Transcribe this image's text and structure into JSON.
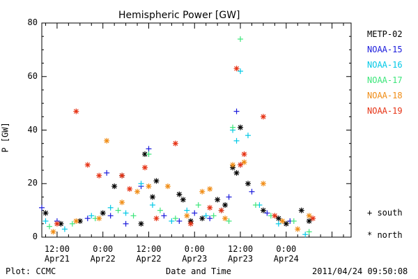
{
  "chart_data": {
    "type": "scatter",
    "title": "Hemispheric Power [GW]",
    "ylabel": "P [GW]",
    "xlabel": "Date and Time",
    "ylim": [
      0,
      80
    ],
    "xlim": [
      "2011-04-21T08:00",
      "2011-04-24T17:00"
    ],
    "y_ticks": [
      0,
      20,
      40,
      60,
      80
    ],
    "x_ticks": [
      {
        "time": "2011-04-21T12:00",
        "label": [
          "12:00",
          "Apr21"
        ]
      },
      {
        "time": "2011-04-22T00:00",
        "label": [
          "0:00",
          "Apr22"
        ]
      },
      {
        "time": "2011-04-22T12:00",
        "label": [
          "12:00",
          "Apr22"
        ]
      },
      {
        "time": "2011-04-23T00:00",
        "label": [
          "0:00",
          "Apr23"
        ]
      },
      {
        "time": "2011-04-23T12:00",
        "label": [
          "12:00",
          "Apr23"
        ]
      },
      {
        "time": "2011-04-24T00:00",
        "label": [
          "0:00",
          "Apr24"
        ]
      }
    ],
    "legend_position": "right",
    "series": [
      {
        "name": "METP-02",
        "color": "#000000",
        "marker": "*",
        "points": [
          [
            "2011-04-21T09:00",
            9
          ],
          [
            "2011-04-21T13:00",
            5
          ],
          [
            "2011-04-21T18:00",
            6
          ],
          [
            "2011-04-22T00:00",
            9
          ],
          [
            "2011-04-22T03:00",
            19
          ],
          [
            "2011-04-22T05:00",
            23
          ],
          [
            "2011-04-22T10:00",
            5
          ],
          [
            "2011-04-22T11:00",
            31
          ],
          [
            "2011-04-22T13:00",
            15
          ],
          [
            "2011-04-22T14:00",
            21
          ],
          [
            "2011-04-22T20:00",
            16
          ],
          [
            "2011-04-22T21:00",
            14
          ],
          [
            "2011-04-22T23:00",
            6
          ],
          [
            "2011-04-23T02:00",
            7
          ],
          [
            "2011-04-23T06:00",
            14
          ],
          [
            "2011-04-23T08:00",
            12
          ],
          [
            "2011-04-23T10:00",
            26
          ],
          [
            "2011-04-23T11:00",
            24
          ],
          [
            "2011-04-23T12:00",
            41
          ],
          [
            "2011-04-23T14:00",
            20
          ],
          [
            "2011-04-23T18:00",
            10
          ],
          [
            "2011-04-23T22:00",
            7
          ],
          [
            "2011-04-24T00:00",
            5
          ],
          [
            "2011-04-24T04:00",
            10
          ],
          [
            "2011-04-24T06:00",
            6
          ]
        ]
      },
      {
        "name": "NOAA-15",
        "color": "#1a1adc",
        "marker": "+",
        "points": [
          [
            "2011-04-21T08:00",
            11
          ],
          [
            "2011-04-21T12:00",
            6
          ],
          [
            "2011-04-21T20:00",
            7
          ],
          [
            "2011-04-22T01:00",
            24
          ],
          [
            "2011-04-22T02:00",
            8
          ],
          [
            "2011-04-22T06:00",
            5
          ],
          [
            "2011-04-22T10:00",
            19
          ],
          [
            "2011-04-22T12:00",
            33
          ],
          [
            "2011-04-22T16:00",
            8
          ],
          [
            "2011-04-22T20:00",
            6
          ],
          [
            "2011-04-23T00:00",
            9
          ],
          [
            "2011-04-23T04:00",
            7
          ],
          [
            "2011-04-23T09:00",
            15
          ],
          [
            "2011-04-23T11:00",
            47
          ],
          [
            "2011-04-23T12:00",
            27
          ],
          [
            "2011-04-23T15:00",
            17
          ],
          [
            "2011-04-23T19:00",
            9
          ],
          [
            "2011-04-24T01:00",
            6
          ]
        ]
      },
      {
        "name": "NOAA-16",
        "color": "#00c8e6",
        "marker": "+",
        "points": [
          [
            "2011-04-21T09:00",
            6
          ],
          [
            "2011-04-21T14:00",
            3
          ],
          [
            "2011-04-21T21:00",
            8
          ],
          [
            "2011-04-22T02:00",
            11
          ],
          [
            "2011-04-22T06:00",
            9
          ],
          [
            "2011-04-22T10:00",
            20
          ],
          [
            "2011-04-22T13:00",
            12
          ],
          [
            "2011-04-22T18:00",
            6
          ],
          [
            "2011-04-22T22:00",
            10
          ],
          [
            "2011-04-23T03:00",
            8
          ],
          [
            "2011-04-23T07:00",
            10
          ],
          [
            "2011-04-23T10:00",
            40
          ],
          [
            "2011-04-23T11:00",
            36
          ],
          [
            "2011-04-23T12:00",
            62
          ],
          [
            "2011-04-23T14:00",
            38
          ],
          [
            "2011-04-23T17:00",
            12
          ],
          [
            "2011-04-23T22:00",
            5
          ],
          [
            "2011-04-24T05:00",
            1
          ]
        ]
      },
      {
        "name": "NOAA-17",
        "color": "#3ce67a",
        "marker": "+",
        "points": [
          [
            "2011-04-21T10:00",
            4
          ],
          [
            "2011-04-21T16:00",
            5
          ],
          [
            "2011-04-21T22:00",
            7
          ],
          [
            "2011-04-22T04:00",
            10
          ],
          [
            "2011-04-22T08:00",
            8
          ],
          [
            "2011-04-22T12:00",
            31
          ],
          [
            "2011-04-22T15:00",
            10
          ],
          [
            "2011-04-22T19:00",
            7
          ],
          [
            "2011-04-23T01:00",
            12
          ],
          [
            "2011-04-23T05:00",
            8
          ],
          [
            "2011-04-23T09:00",
            6
          ],
          [
            "2011-04-23T10:00",
            41
          ],
          [
            "2011-04-23T12:00",
            74
          ],
          [
            "2011-04-23T16:00",
            12
          ],
          [
            "2011-04-23T20:00",
            8
          ],
          [
            "2011-04-24T02:00",
            6
          ],
          [
            "2011-04-24T06:00",
            2
          ]
        ]
      },
      {
        "name": "NOAA-18",
        "color": "#f08c14",
        "marker": "*",
        "points": [
          [
            "2011-04-21T11:00",
            2
          ],
          [
            "2011-04-21T17:00",
            6
          ],
          [
            "2011-04-21T23:00",
            7
          ],
          [
            "2011-04-22T01:00",
            36
          ],
          [
            "2011-04-22T05:00",
            13
          ],
          [
            "2011-04-22T09:00",
            17
          ],
          [
            "2011-04-22T12:00",
            19
          ],
          [
            "2011-04-22T17:00",
            19
          ],
          [
            "2011-04-22T22:00",
            8
          ],
          [
            "2011-04-23T02:00",
            17
          ],
          [
            "2011-04-23T04:00",
            18
          ],
          [
            "2011-04-23T08:00",
            7
          ],
          [
            "2011-04-23T10:00",
            27
          ],
          [
            "2011-04-23T13:00",
            28
          ],
          [
            "2011-04-23T18:00",
            20
          ],
          [
            "2011-04-23T23:00",
            6
          ],
          [
            "2011-04-24T03:00",
            3
          ],
          [
            "2011-04-24T06:00",
            8
          ]
        ]
      },
      {
        "name": "NOAA-19",
        "color": "#e63214",
        "marker": "*",
        "points": [
          [
            "2011-04-21T12:00",
            5
          ],
          [
            "2011-04-21T17:00",
            47
          ],
          [
            "2011-04-21T20:00",
            27
          ],
          [
            "2011-04-21T23:00",
            23
          ],
          [
            "2011-04-22T05:00",
            23
          ],
          [
            "2011-04-22T07:00",
            18
          ],
          [
            "2011-04-22T11:00",
            26
          ],
          [
            "2011-04-22T14:00",
            7
          ],
          [
            "2011-04-22T19:00",
            35
          ],
          [
            "2011-04-22T23:00",
            5
          ],
          [
            "2011-04-23T04:00",
            11
          ],
          [
            "2011-04-23T07:00",
            10
          ],
          [
            "2011-04-23T11:00",
            63
          ],
          [
            "2011-04-23T12:00",
            27
          ],
          [
            "2011-04-23T13:00",
            31
          ],
          [
            "2011-04-23T18:00",
            45
          ],
          [
            "2011-04-23T21:00",
            8
          ],
          [
            "2011-04-24T07:00",
            7
          ]
        ]
      }
    ]
  },
  "legend": {
    "items": [
      "METP-02",
      "NOAA-15",
      "NOAA-16",
      "NOAA-17",
      "NOAA-18",
      "NOAA-19"
    ],
    "south_label": "+ south",
    "north_label": "* north"
  },
  "footer": {
    "left": "Plot: CCMC",
    "center": "Date and Time",
    "right": "2011/04/24 09:50:08"
  }
}
